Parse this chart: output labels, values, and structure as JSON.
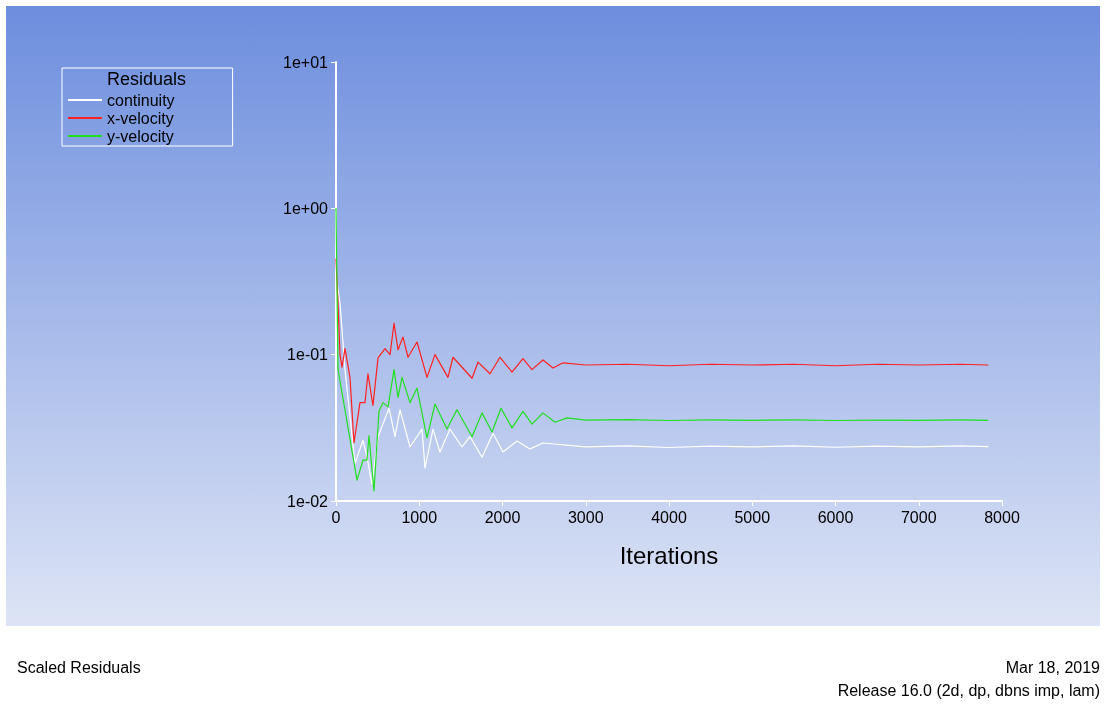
{
  "chart_data": {
    "type": "line",
    "xlabel": "Iterations",
    "legend_title": "Residuals",
    "legend": "top left",
    "log": "y",
    "grid": false,
    "marker": "none",
    "line_style": "solid",
    "xlim": [
      0,
      8000
    ],
    "xticks": [
      0,
      1000,
      2000,
      3000,
      4000,
      5000,
      6000,
      7000,
      8000
    ],
    "ylim": [
      0.01,
      10
    ],
    "yticks": [
      {
        "value": 0.01,
        "label": "1e-02"
      },
      {
        "value": 0.1,
        "label": "1e-01"
      },
      {
        "value": 1,
        "label": "1e+00"
      },
      {
        "value": 10,
        "label": "1e+01"
      }
    ],
    "series": [
      {
        "name": "continuity",
        "color": "#ffffff",
        "x": [
          0,
          48,
          108,
          228,
          324,
          372,
          432,
          505,
          637,
          709,
          769,
          889,
          1033,
          1069,
          1165,
          1249,
          1369,
          1514,
          1610,
          1754,
          1886,
          2006,
          2174,
          2330,
          2486,
          3000,
          3500,
          4000,
          4500,
          5000,
          5500,
          6000,
          6500,
          7000,
          7500,
          7830
        ],
        "values": [
          0.35,
          0.225,
          0.079,
          0.018,
          0.026,
          0.02,
          0.013,
          0.0275,
          0.043,
          0.0275,
          0.042,
          0.0234,
          0.031,
          0.0168,
          0.031,
          0.0216,
          0.031,
          0.0234,
          0.0275,
          0.0199,
          0.029,
          0.0216,
          0.0257,
          0.0227,
          0.0249,
          0.0234,
          0.0238,
          0.0232,
          0.0237,
          0.0234,
          0.0238,
          0.0233,
          0.0237,
          0.0234,
          0.0238,
          0.0235
        ]
      },
      {
        "name": "x-velocity",
        "color": "#ff2020",
        "x": [
          0,
          24,
          48,
          72,
          108,
          168,
          216,
          288,
          348,
          384,
          444,
          505,
          589,
          649,
          697,
          745,
          805,
          865,
          973,
          1093,
          1189,
          1345,
          1405,
          1634,
          1706,
          1850,
          1970,
          2114,
          2246,
          2354,
          2486,
          2607,
          2727,
          3000,
          3500,
          4000,
          4500,
          5000,
          5500,
          6000,
          6500,
          7000,
          7500,
          7830
        ],
        "values": [
          0.45,
          0.225,
          0.1,
          0.082,
          0.11,
          0.07,
          0.025,
          0.047,
          0.047,
          0.074,
          0.045,
          0.095,
          0.11,
          0.1,
          0.164,
          0.108,
          0.132,
          0.096,
          0.122,
          0.07,
          0.1,
          0.07,
          0.096,
          0.069,
          0.089,
          0.074,
          0.096,
          0.076,
          0.094,
          0.079,
          0.092,
          0.081,
          0.088,
          0.085,
          0.086,
          0.084,
          0.086,
          0.085,
          0.086,
          0.084,
          0.086,
          0.085,
          0.086,
          0.085
        ]
      },
      {
        "name": "y-velocity",
        "color": "#20e020",
        "x": [
          0,
          24,
          108,
          252,
          324,
          372,
          396,
          456,
          516,
          565,
          625,
          697,
          745,
          793,
          889,
          973,
          1093,
          1189,
          1333,
          1453,
          1634,
          1754,
          1874,
          1982,
          2114,
          2246,
          2354,
          2486,
          2631,
          2775,
          3000,
          3500,
          4000,
          4500,
          5000,
          5500,
          6000,
          6500,
          7000,
          7500,
          7830
        ],
        "values": [
          1,
          0.079,
          0.042,
          0.0139,
          0.019,
          0.019,
          0.028,
          0.0117,
          0.041,
          0.047,
          0.044,
          0.079,
          0.051,
          0.07,
          0.047,
          0.059,
          0.027,
          0.046,
          0.031,
          0.042,
          0.0275,
          0.04,
          0.0296,
          0.043,
          0.0316,
          0.041,
          0.0335,
          0.04,
          0.0345,
          0.037,
          0.0357,
          0.036,
          0.0355,
          0.0358,
          0.0356,
          0.0358,
          0.0355,
          0.0357,
          0.0356,
          0.0358,
          0.0356
        ]
      }
    ],
    "annotations": [
      "Scaled Residuals",
      "Mar 18, 2019",
      "Release 16.0 (2d, dp, dbns imp, lam)"
    ]
  }
}
